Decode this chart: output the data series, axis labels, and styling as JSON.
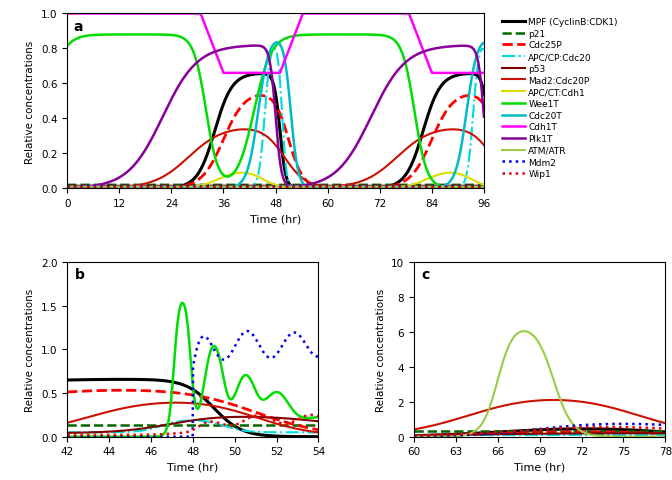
{
  "title_a": "a",
  "title_b": "b",
  "title_c": "c",
  "xlabel": "Time (hr)",
  "ylabel": "Relative concentrations",
  "xlim_a": [
    0,
    96
  ],
  "ylim_a": [
    0,
    1.0
  ],
  "ylim_b": [
    0,
    2.0
  ],
  "ylim_c": [
    0,
    10.0
  ],
  "xlim_b": [
    42,
    54
  ],
  "xlim_c": [
    60,
    78
  ],
  "xticks_a": [
    0,
    12,
    24,
    36,
    48,
    60,
    72,
    84,
    96
  ],
  "xticks_b": [
    42,
    44,
    46,
    48,
    50,
    52,
    54
  ],
  "xticks_c": [
    60,
    63,
    66,
    69,
    72,
    75,
    78
  ],
  "yticks_a": [
    0,
    0.2,
    0.4,
    0.6,
    0.8,
    1.0
  ],
  "yticks_b": [
    0,
    0.5,
    1.0,
    1.5,
    2.0
  ],
  "yticks_c": [
    0,
    2,
    4,
    6,
    8,
    10
  ],
  "legend_entries": [
    {
      "label": "MPF (CyclinB:CDK1)",
      "color": "#000000",
      "linestyle": "solid",
      "linewidth": 2.2
    },
    {
      "label": "p21",
      "color": "#006600",
      "linestyle": "dashed",
      "linewidth": 1.8
    },
    {
      "label": "Cdc25P",
      "color": "#ff0000",
      "linestyle": "dashed",
      "linewidth": 2.0
    },
    {
      "label": "APC/CP:Cdc20",
      "color": "#00dddd",
      "linestyle": "dashdot",
      "linewidth": 1.5
    },
    {
      "label": "p53",
      "color": "#800000",
      "linestyle": "solid",
      "linewidth": 1.5
    },
    {
      "label": "Mad2:Cdc20P",
      "color": "#cc1100",
      "linestyle": "solid",
      "linewidth": 1.5
    },
    {
      "label": "APC/CT:Cdh1",
      "color": "#dddd00",
      "linestyle": "solid",
      "linewidth": 1.5
    },
    {
      "label": "Wee1T",
      "color": "#00dd00",
      "linestyle": "solid",
      "linewidth": 1.8
    },
    {
      "label": "Cdc20T",
      "color": "#00bbcc",
      "linestyle": "solid",
      "linewidth": 1.8
    },
    {
      "label": "Cdh1T",
      "color": "#ff00ff",
      "linestyle": "solid",
      "linewidth": 1.8
    },
    {
      "label": "Plk1T",
      "color": "#880099",
      "linestyle": "solid",
      "linewidth": 1.8
    },
    {
      "label": "ATM/ATR",
      "color": "#99cc44",
      "linestyle": "solid",
      "linewidth": 1.5
    },
    {
      "label": "Mdm2",
      "color": "#0000ee",
      "linestyle": "dotted",
      "linewidth": 1.8
    },
    {
      "label": "Wip1",
      "color": "#ee0000",
      "linestyle": "dotted",
      "linewidth": 1.8
    }
  ]
}
